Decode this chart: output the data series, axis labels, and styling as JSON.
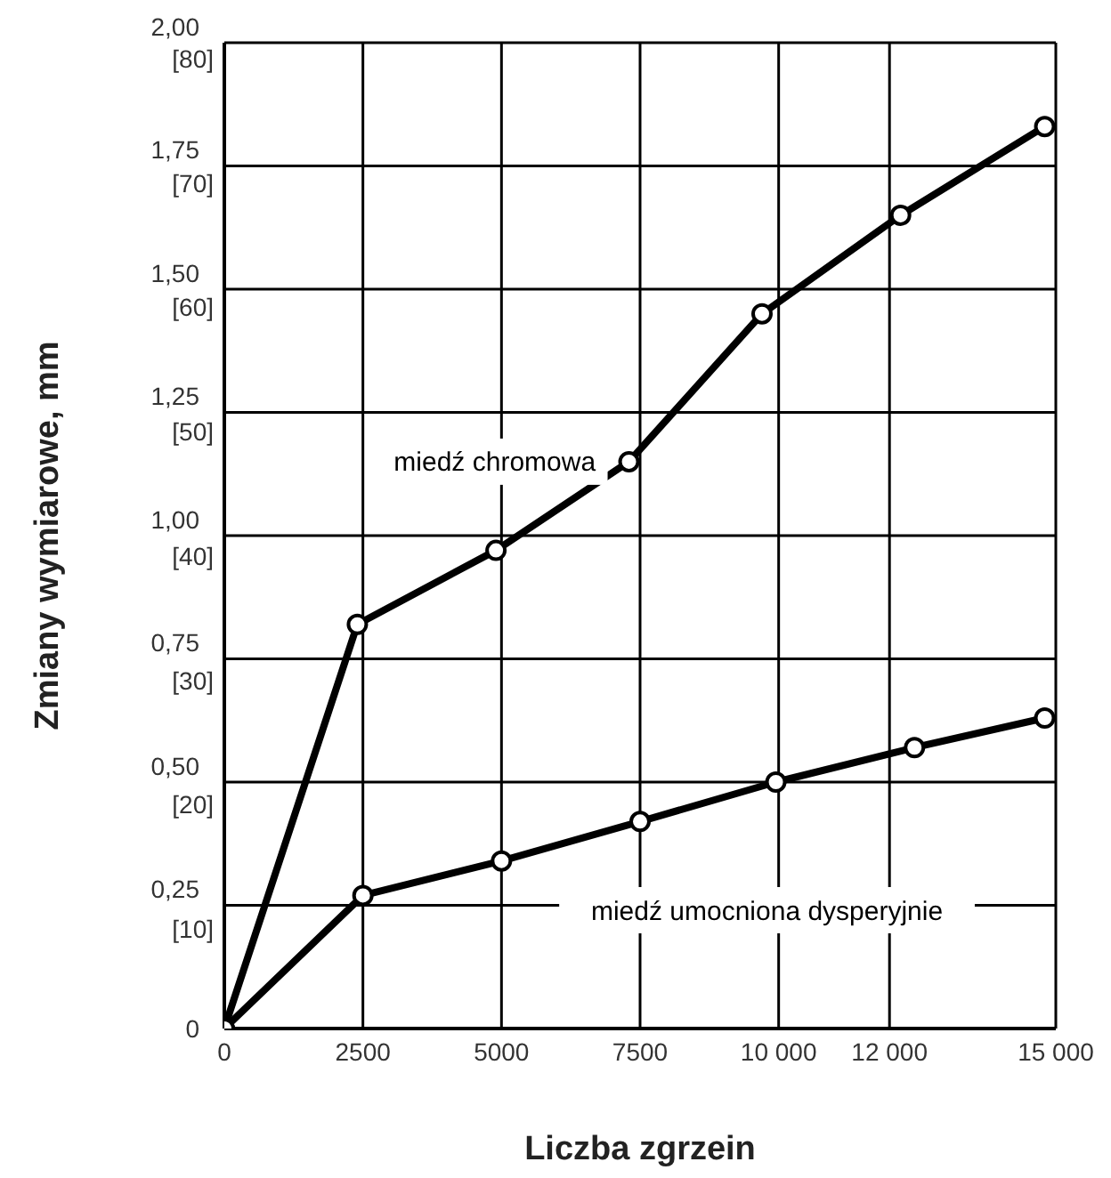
{
  "chart_data": {
    "type": "line",
    "xlabel": "Liczba zgrzein",
    "ylabel": "Zmiany wymiarowe, mm",
    "series": [
      {
        "name": "miedź chromowa",
        "color": "#000000",
        "x": [
          0,
          2400,
          4900,
          7300,
          9700,
          12200,
          14800
        ],
        "values": [
          0,
          0.82,
          0.97,
          1.15,
          1.45,
          1.65,
          1.83
        ]
      },
      {
        "name": "miedź umocniona dysperyjnie",
        "color": "#000000",
        "x": [
          0,
          2500,
          5000,
          7500,
          9950,
          12450,
          14800
        ],
        "values": [
          0,
          0.27,
          0.34,
          0.42,
          0.5,
          0.57,
          0.63
        ]
      }
    ],
    "xlim": [
      0,
      15000
    ],
    "xticks": [
      0,
      2500,
      5000,
      7500,
      {
        "value": 10000,
        "label": "10 000"
      },
      {
        "value": 12000,
        "label": "12 000"
      },
      {
        "value": 15000,
        "label": "15 000"
      }
    ],
    "ylim": [
      0,
      2
    ],
    "yticks": [
      0,
      {
        "value": 0.25,
        "label": "0,25"
      },
      {
        "value": 0.5,
        "label": "0,50"
      },
      {
        "value": 0.75,
        "label": "0,75"
      },
      {
        "value": 1,
        "label": "1,00"
      },
      {
        "value": 1.25,
        "label": "1,25"
      },
      {
        "value": 1.5,
        "label": "1,50"
      },
      {
        "value": 1.75,
        "label": "1,75"
      },
      {
        "value": 2,
        "label": "2,00"
      }
    ],
    "y2lim": [
      0,
      80
    ],
    "y2ticks": [
      {
        "value": 10,
        "label": "[10]"
      },
      {
        "value": 20,
        "label": "[20]"
      },
      {
        "value": 30,
        "label": "[30]"
      },
      {
        "value": 40,
        "label": "[40]"
      },
      {
        "value": 50,
        "label": "[50]"
      },
      {
        "value": 60,
        "label": "[60]"
      },
      {
        "value": 70,
        "label": "[70]"
      },
      {
        "value": 80,
        "label": "[80]"
      }
    ],
    "grid": true,
    "legend": false,
    "marker": "circle",
    "line_style": "solid"
  }
}
